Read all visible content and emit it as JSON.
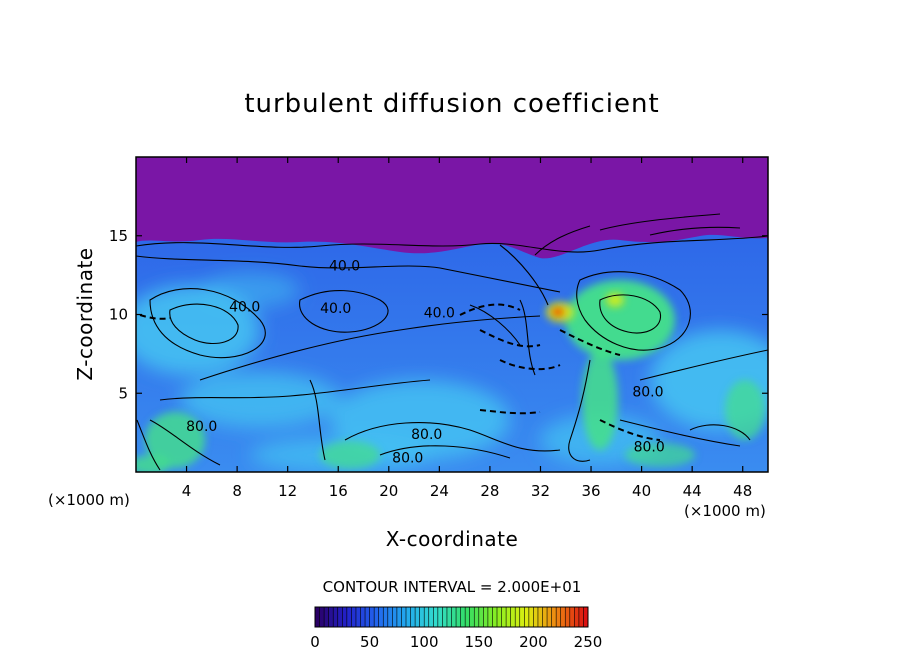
{
  "chart_data": {
    "type": "heatmap",
    "title": "turbulent diffusion coefficient",
    "xlabel": "X-coordinate",
    "ylabel": "Z-coordinate",
    "x_unit": "(×1000 m)",
    "x_unit_right": "(×1000 m)",
    "xlim": [
      0,
      50
    ],
    "ylim": [
      0,
      20
    ],
    "x_ticks": [
      4,
      8,
      12,
      16,
      20,
      24,
      28,
      32,
      36,
      40,
      44,
      48
    ],
    "y_ticks": [
      5,
      10,
      15
    ],
    "contour_interval_text": "CONTOUR INTERVAL = 2.000E+01",
    "contour_labels": [
      {
        "text": "40.0",
        "x": 16.5,
        "z": 12.8
      },
      {
        "text": "40.0",
        "x": 8.6,
        "z": 10.2
      },
      {
        "text": "40.0",
        "x": 15.8,
        "z": 10.1
      },
      {
        "text": "40.0",
        "x": 24.0,
        "z": 9.8
      },
      {
        "text": "80.0",
        "x": 40.5,
        "z": 4.8
      },
      {
        "text": "80.0",
        "x": 5.2,
        "z": 2.6
      },
      {
        "text": "80.0",
        "x": 23.0,
        "z": 2.1
      },
      {
        "text": "80.0",
        "x": 21.5,
        "z": 0.6
      },
      {
        "text": "80.0",
        "x": 40.6,
        "z": 1.3
      }
    ],
    "colorbar": {
      "min": 0,
      "max": 250,
      "ticks": [
        0,
        50,
        100,
        150,
        200,
        250
      ],
      "colors": [
        "#2a0066",
        "#2222cc",
        "#2266ee",
        "#22aaee",
        "#33ddcc",
        "#33dd66",
        "#88ee22",
        "#ddee11",
        "#ee8811",
        "#dd1111"
      ]
    },
    "field_colors": {
      "upper_region": "#7a16a6",
      "mid_region": "#2255e6",
      "light_region": "#44c4f2",
      "green_region": "#44e08a",
      "peak_region": "#ee2200"
    }
  }
}
